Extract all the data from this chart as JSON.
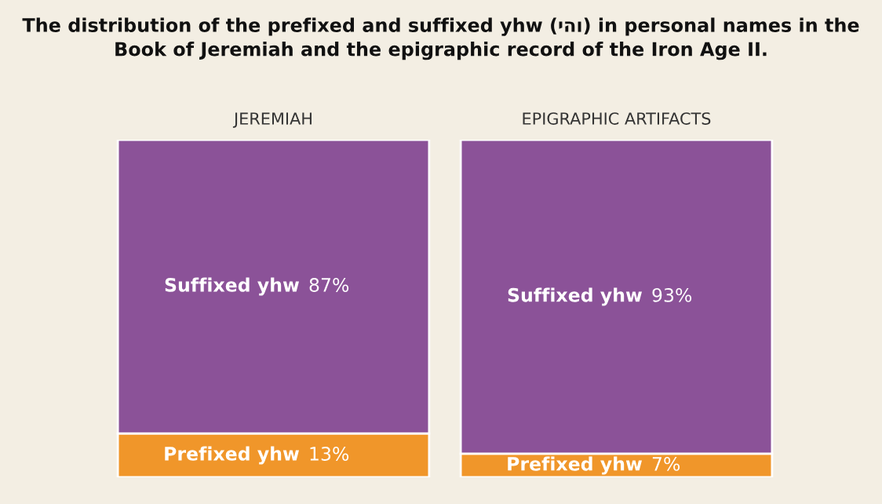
{
  "chart_data": {
    "type": "bar",
    "title": "The distribution of the prefixed and suffixed yhw (יהו) in personal names in the\nBook of Jeremiah and the epigraphic record of the Iron Age II.",
    "categories": [
      "JEREMIAH",
      "EPIGRAPHIC ARTIFACTS"
    ],
    "stacked": true,
    "series": [
      {
        "name": "Prefixed yhw",
        "color": "#f0962a",
        "values": [
          13,
          7
        ],
        "value_labels": [
          "13%",
          "7%"
        ]
      },
      {
        "name": "Suffixed yhw",
        "color": "#8b5298",
        "values": [
          87,
          93
        ],
        "value_labels": [
          "87%",
          "93%"
        ]
      }
    ]
  }
}
